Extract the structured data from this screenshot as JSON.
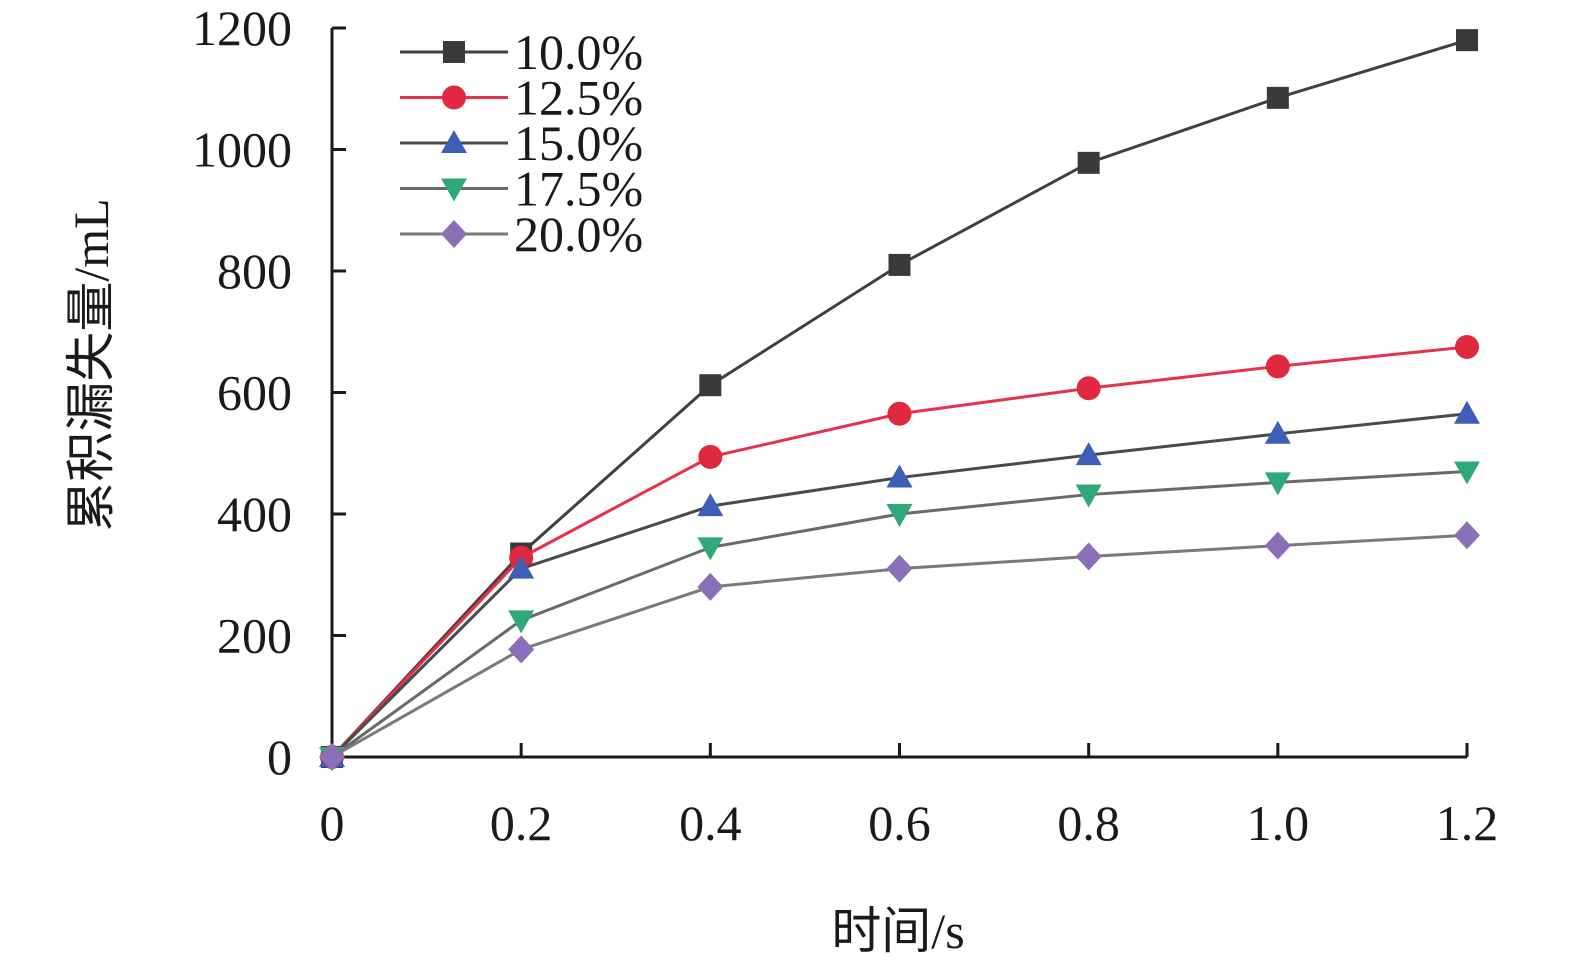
{
  "chart_data": {
    "type": "line",
    "xlabel": "时间/s",
    "ylabel": "累积漏失量/mL",
    "x": [
      0,
      0.2,
      0.4,
      0.6,
      0.8,
      1.0,
      1.2
    ],
    "xticks": [
      "0",
      "0.2",
      "0.4",
      "0.6",
      "0.8",
      "1.0",
      "1.2"
    ],
    "yticks": [
      "0",
      "200",
      "400",
      "600",
      "800",
      "1000",
      "1200"
    ],
    "xlim": [
      0,
      1.2
    ],
    "ylim": [
      0,
      1200
    ],
    "grid": false,
    "legend_position": "top-left",
    "series": [
      {
        "name": "10.0%",
        "marker": "square",
        "color": "#404040",
        "marker_color": "#3a3a3a",
        "values": [
          0,
          335,
          612,
          810,
          978,
          1085,
          1180
        ]
      },
      {
        "name": "12.5%",
        "marker": "circle",
        "color": "#e8304a",
        "marker_color": "#e0283f",
        "values": [
          0,
          328,
          494,
          565,
          607,
          643,
          675
        ]
      },
      {
        "name": "15.0%",
        "marker": "triangle-up",
        "color": "#4a4a4a",
        "marker_color": "#3e5fb8",
        "values": [
          0,
          310,
          413,
          460,
          497,
          532,
          565
        ]
      },
      {
        "name": "17.5%",
        "marker": "triangle-down",
        "color": "#6a6a6a",
        "marker_color": "#2fa87a",
        "values": [
          0,
          225,
          345,
          400,
          432,
          452,
          470
        ]
      },
      {
        "name": "20.0%",
        "marker": "diamond",
        "color": "#7a7a7a",
        "marker_color": "#8a70b8",
        "values": [
          0,
          177,
          280,
          310,
          330,
          348,
          365
        ]
      }
    ]
  }
}
